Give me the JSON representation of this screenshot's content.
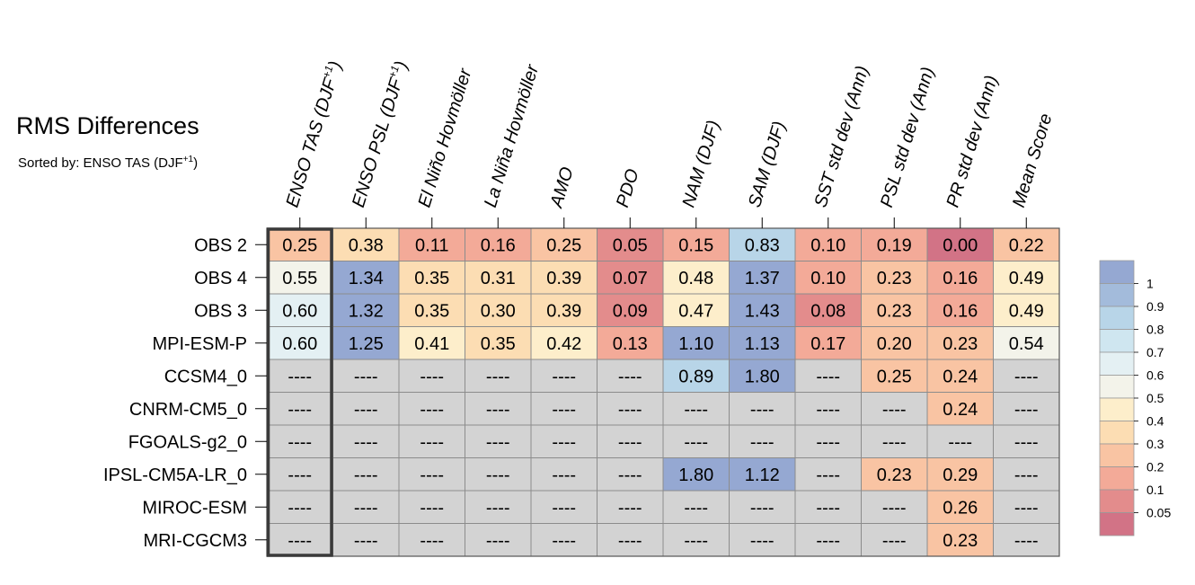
{
  "title": "RMS Differences",
  "subtitle": "Sorted by: ENSO TAS (DJF",
  "subtitle_sup": "+1",
  "subtitle_end": ")",
  "chart_data": {
    "type": "heatmap",
    "columns": [
      {
        "label": "ENSO TAS (DJF",
        "sup": "+1",
        "end": ")"
      },
      {
        "label": "ENSO PSL (DJF",
        "sup": "+1",
        "end": ")"
      },
      {
        "label": "El Niño Hovmöller",
        "sup": "",
        "end": ""
      },
      {
        "label": "La Niña Hovmöller",
        "sup": "",
        "end": ""
      },
      {
        "label": "AMO",
        "sup": "",
        "end": ""
      },
      {
        "label": "PDO",
        "sup": "",
        "end": ""
      },
      {
        "label": "NAM (DJF)",
        "sup": "",
        "end": ""
      },
      {
        "label": "SAM (DJF)",
        "sup": "",
        "end": ""
      },
      {
        "label": "SST std dev (Ann)",
        "sup": "",
        "end": ""
      },
      {
        "label": "PSL std dev (Ann)",
        "sup": "",
        "end": ""
      },
      {
        "label": "PR std dev (Ann)",
        "sup": "",
        "end": ""
      },
      {
        "label": "Mean Score",
        "sup": "",
        "end": ""
      }
    ],
    "rows": [
      "OBS 2",
      "OBS 4",
      "OBS 3",
      "MPI-ESM-P",
      "CCSM4_0",
      "CNRM-CM5_0",
      "FGOALS-g2_0",
      "IPSL-CM5A-LR_0",
      "MIROC-ESM",
      "MRI-CGCM3"
    ],
    "values": [
      [
        "0.25",
        "0.38",
        "0.11",
        "0.16",
        "0.25",
        "0.05",
        "0.15",
        "0.83",
        "0.10",
        "0.19",
        "0.00",
        "0.22"
      ],
      [
        "0.55",
        "1.34",
        "0.35",
        "0.31",
        "0.39",
        "0.07",
        "0.48",
        "1.37",
        "0.10",
        "0.23",
        "0.16",
        "0.49"
      ],
      [
        "0.60",
        "1.32",
        "0.35",
        "0.30",
        "0.39",
        "0.09",
        "0.47",
        "1.43",
        "0.08",
        "0.23",
        "0.16",
        "0.49"
      ],
      [
        "0.60",
        "1.25",
        "0.41",
        "0.35",
        "0.42",
        "0.13",
        "1.10",
        "1.13",
        "0.17",
        "0.20",
        "0.23",
        "0.54"
      ],
      [
        "----",
        "----",
        "----",
        "----",
        "----",
        "----",
        "0.89",
        "1.80",
        "----",
        "0.25",
        "0.24",
        "----"
      ],
      [
        "----",
        "----",
        "----",
        "----",
        "----",
        "----",
        "----",
        "----",
        "----",
        "----",
        "0.24",
        "----"
      ],
      [
        "----",
        "----",
        "----",
        "----",
        "----",
        "----",
        "----",
        "----",
        "----",
        "----",
        "----",
        "----"
      ],
      [
        "----",
        "----",
        "----",
        "----",
        "----",
        "----",
        "1.80",
        "1.12",
        "----",
        "0.23",
        "0.29",
        "----"
      ],
      [
        "----",
        "----",
        "----",
        "----",
        "----",
        "----",
        "----",
        "----",
        "----",
        "----",
        "0.26",
        "----"
      ],
      [
        "----",
        "----",
        "----",
        "----",
        "----",
        "----",
        "----",
        "----",
        "----",
        "----",
        "0.23",
        "----"
      ]
    ],
    "missing_text": "----",
    "missing_color": "#d3d3d3",
    "sort_column": 0,
    "legend": {
      "labels": [
        "1",
        "0.9",
        "0.8",
        "0.7",
        "0.6",
        "0.5",
        "0.4",
        "0.3",
        "0.2",
        "0.1",
        "0.05"
      ],
      "thresholds": [
        1,
        0.9,
        0.8,
        0.7,
        0.6,
        0.5,
        0.4,
        0.3,
        0.2,
        0.1,
        0.05
      ],
      "colors": [
        "#95a8d2",
        "#a3bbdb",
        "#b8d5e8",
        "#cfe6f0",
        "#e4f0f3",
        "#f3f3ea",
        "#fdeecb",
        "#fcddb3",
        "#f9c4a3",
        "#f3aa98",
        "#e38c8c",
        "#d27386"
      ],
      "placement": "right"
    }
  }
}
